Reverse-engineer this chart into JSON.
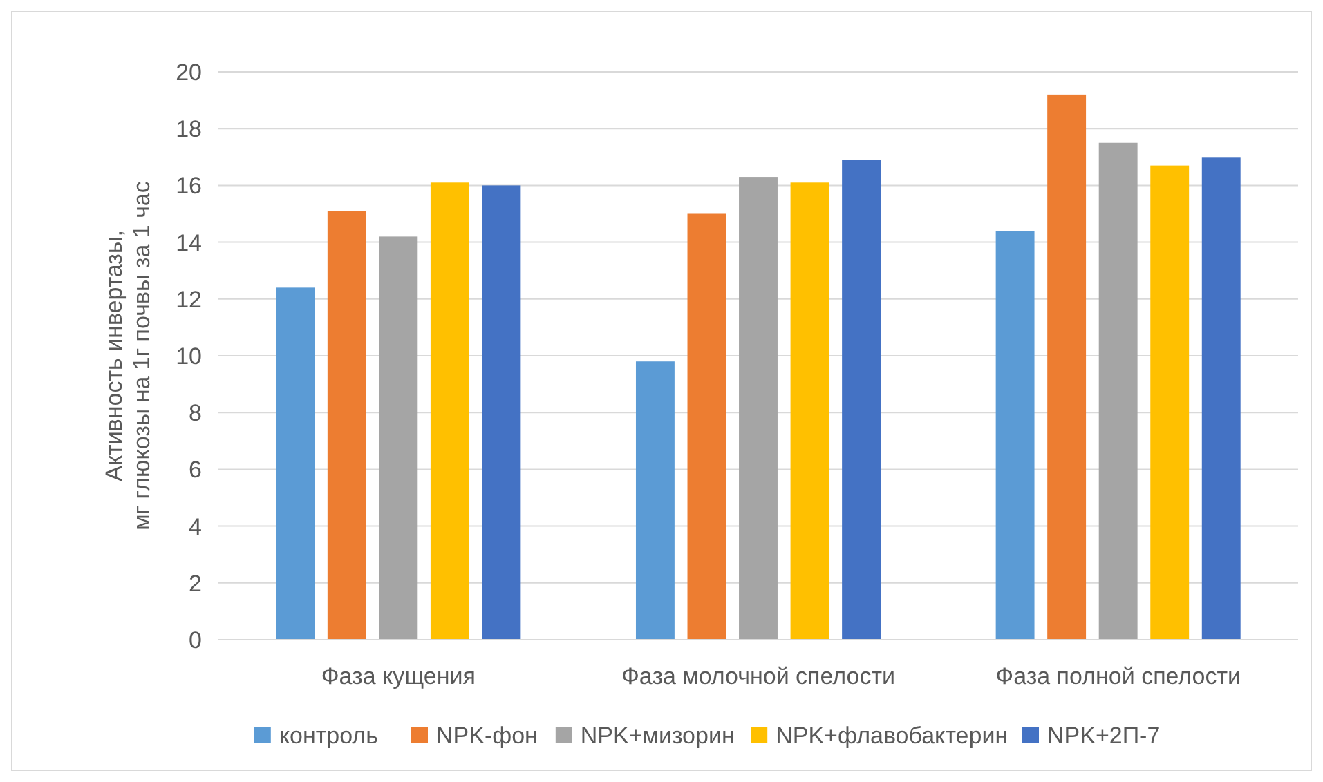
{
  "chart_data": {
    "type": "bar",
    "ylabel": "Активность инвертазы,\nмг глюкозы на 1г почвы за 1 час",
    "categories": [
      "Фаза кущения",
      "Фаза молочной спелости",
      "Фаза полной спелости"
    ],
    "series": [
      {
        "name": "контроль",
        "color": "#5b9bd5",
        "values": [
          12.4,
          9.8,
          14.4
        ]
      },
      {
        "name": "NPK-фон",
        "color": "#ed7d31",
        "values": [
          15.1,
          15.0,
          19.2
        ]
      },
      {
        "name": "NPK+мизорин",
        "color": "#a5a5a5",
        "values": [
          14.2,
          16.3,
          17.5
        ]
      },
      {
        "name": "NPK+флавобактерин",
        "color": "#ffc000",
        "values": [
          16.1,
          16.1,
          16.7
        ]
      },
      {
        "name": "NPK+2П-7",
        "color": "#4472c4",
        "values": [
          16.0,
          16.9,
          17.0
        ]
      }
    ],
    "ylim": [
      0,
      20
    ],
    "yticks": [
      0,
      2,
      4,
      6,
      8,
      10,
      12,
      14,
      16,
      18,
      20
    ],
    "grid": "y",
    "legend": "bottom"
  }
}
